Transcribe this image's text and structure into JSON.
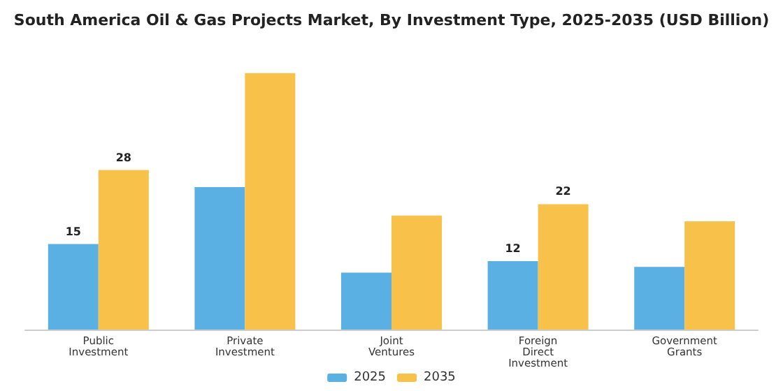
{
  "chart_data": {
    "type": "bar",
    "title": "South America Oil & Gas Projects Market, By Investment Type, 2025-2035 (USD Billion)",
    "categories": [
      "Public\nInvestment",
      "Private\nInvestment",
      "Joint\nVentures",
      "Foreign\nDirect\nInvestment",
      "Government\nGrants"
    ],
    "series": [
      {
        "name": "2025",
        "color": "#5aafe3",
        "values": [
          15,
          25,
          10,
          12,
          11
        ],
        "value_labels": [
          "15",
          null,
          null,
          "12",
          null
        ]
      },
      {
        "name": "2035",
        "color": "#f8c24a",
        "values": [
          28,
          45,
          20,
          22,
          19
        ],
        "value_labels": [
          "28",
          null,
          null,
          "22",
          null
        ]
      }
    ],
    "legend": "bottom"
  }
}
